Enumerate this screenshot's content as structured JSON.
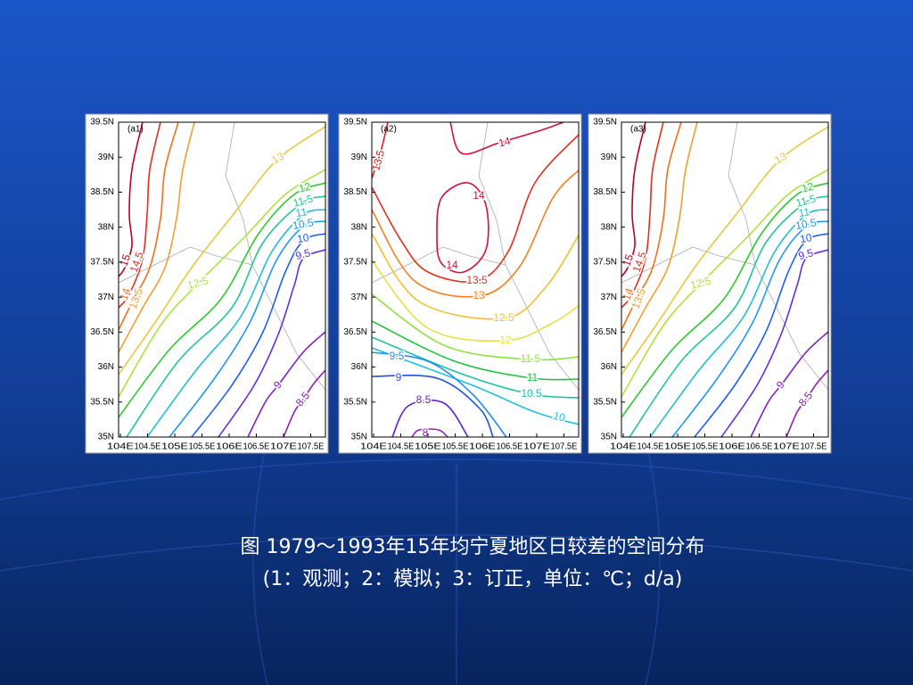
{
  "yticks": [
    "39.5N",
    "39N",
    "38.5N",
    "38N",
    "37.5N",
    "37N",
    "36.5N",
    "36N",
    "35.5N",
    "35N"
  ],
  "xticks": [
    "104E",
    "104.5E",
    "105E",
    "105.5E",
    "106E",
    "106.5E",
    "107E",
    "107.5E"
  ],
  "panels": [
    {
      "tag": "(a1)",
      "contours": [
        {
          "level": 15,
          "color": "#c00020"
        },
        {
          "level": 14.5,
          "color": "#e03020"
        },
        {
          "level": 14,
          "color": "#f07020"
        },
        {
          "level": 13.5,
          "color": "#f0a030"
        },
        {
          "level": 13,
          "color": "#e8c840"
        },
        {
          "level": 12.5,
          "color": "#b0e040"
        },
        {
          "level": 12,
          "color": "#30c830"
        },
        {
          "level": 11.5,
          "color": "#20c890"
        },
        {
          "level": 11,
          "color": "#20c0d0"
        },
        {
          "level": 10.5,
          "color": "#2098f0"
        },
        {
          "level": 10,
          "color": "#2060f0"
        },
        {
          "level": 9.5,
          "color": "#6030e0"
        },
        {
          "level": 9,
          "color": "#8020c0"
        },
        {
          "level": 8.5,
          "color": "#9020b0"
        }
      ]
    },
    {
      "tag": "(a2)",
      "contours": [
        {
          "level": 13.5,
          "color": "#e02020"
        },
        {
          "level": 14,
          "color": "#d01040"
        },
        {
          "level": 14,
          "color": "#d01040"
        },
        {
          "level": 13.5,
          "color": "#e03020"
        },
        {
          "level": 13,
          "color": "#f08020"
        },
        {
          "level": 12.5,
          "color": "#f0c030"
        },
        {
          "level": 12,
          "color": "#e8e040"
        },
        {
          "level": 11.5,
          "color": "#90e040"
        },
        {
          "level": 11,
          "color": "#20c040"
        },
        {
          "level": 10.5,
          "color": "#20c0a0"
        },
        {
          "level": 10,
          "color": "#20c0e0"
        },
        {
          "level": 9.5,
          "color": "#2090f0"
        },
        {
          "level": 9,
          "color": "#2050e0"
        },
        {
          "level": 8.5,
          "color": "#6020d0"
        },
        {
          "level": 8,
          "color": "#9020c0"
        }
      ]
    },
    {
      "tag": "(a3)",
      "contours": [
        {
          "level": 15,
          "color": "#c00020"
        },
        {
          "level": 14.5,
          "color": "#e03020"
        },
        {
          "level": 14,
          "color": "#f07020"
        },
        {
          "level": 13.5,
          "color": "#f0a030"
        },
        {
          "level": 13,
          "color": "#e8c840"
        },
        {
          "level": 12.5,
          "color": "#b0e040"
        },
        {
          "level": 12,
          "color": "#30c830"
        },
        {
          "level": 11.5,
          "color": "#20c890"
        },
        {
          "level": 11,
          "color": "#20c0d0"
        },
        {
          "level": 10.5,
          "color": "#2098f0"
        },
        {
          "level": 10,
          "color": "#2060f0"
        },
        {
          "level": 9.5,
          "color": "#6030e0"
        },
        {
          "level": 9,
          "color": "#8020c0"
        },
        {
          "level": 8.5,
          "color": "#9020b0"
        }
      ]
    }
  ],
  "caption": {
    "line1": "图 1979～1993年15年均宁夏地区日较差的空间分布",
    "line2": "(1：观测；2：模拟；3：订正，单位：℃；d/a)"
  }
}
